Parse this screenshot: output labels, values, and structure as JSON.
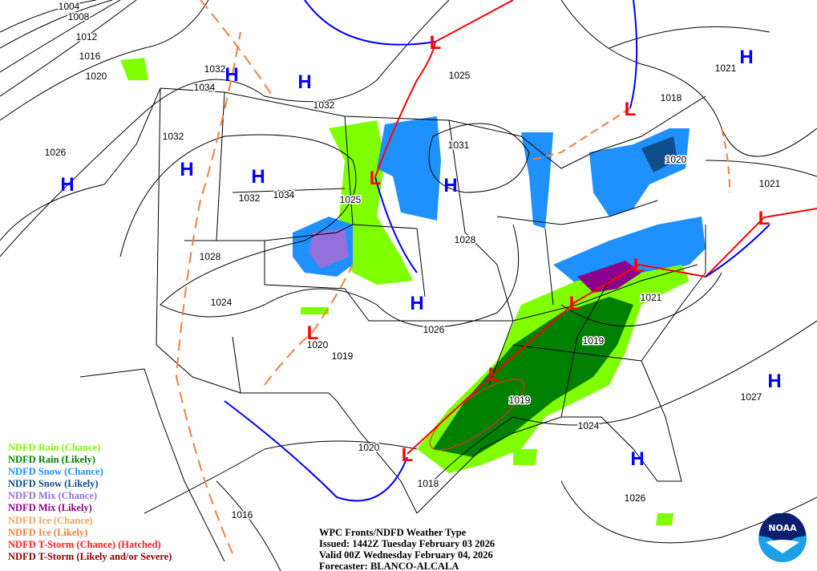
{
  "title": "WPC Fronts/NDFD Weather Type",
  "issued": "Issued: 1442Z Tuesday February 03 2026",
  "valid": "Valid 00Z Wednesday February 04, 2026",
  "forecaster": "Forecaster: BLANCO-ALCALA",
  "logo_text": "NOAA",
  "legend": [
    {
      "label": "NDFD Rain (Chance)",
      "color": "#80ff00"
    },
    {
      "label": "NDFD Rain (Likely)",
      "color": "#008000"
    },
    {
      "label": "NDFD Snow (Chance)",
      "color": "#1e90ff"
    },
    {
      "label": "NDFD Snow (Likely)",
      "color": "#104e8b"
    },
    {
      "label": "NDFD Mix (Chance)",
      "color": "#9370db"
    },
    {
      "label": "NDFD Mix (Likely)",
      "color": "#8b008b"
    },
    {
      "label": "NDFD Ice (Chance)",
      "color": "#f4a460"
    },
    {
      "label": "NDFD Ice (Likely)",
      "color": "#f08040"
    },
    {
      "label": "NDFD T-Storm (Chance) (Hatched)",
      "color": "#ff2020"
    },
    {
      "label": "NDFD T-Storm (Likely and/or Severe)",
      "color": "#8b0000"
    }
  ],
  "high_label": "H",
  "low_label": "L",
  "high_color": "#0000ff",
  "low_color": "#ff0000",
  "isobar_labels": [
    "1004",
    "1008",
    "1012",
    "1016",
    "1020",
    "1032",
    "1034",
    "1032",
    "1032",
    "1026",
    "1032",
    "1034",
    "1025",
    "1028",
    "1024",
    "1020",
    "1019",
    "1025",
    "1031",
    "1028",
    "1026",
    "1019",
    "1021",
    "1018",
    "1021",
    "1020",
    "1021",
    "1019",
    "1024",
    "1027",
    "1020",
    "1018",
    "1016",
    "1026"
  ],
  "highs_count": 10,
  "lows_count": 9
}
